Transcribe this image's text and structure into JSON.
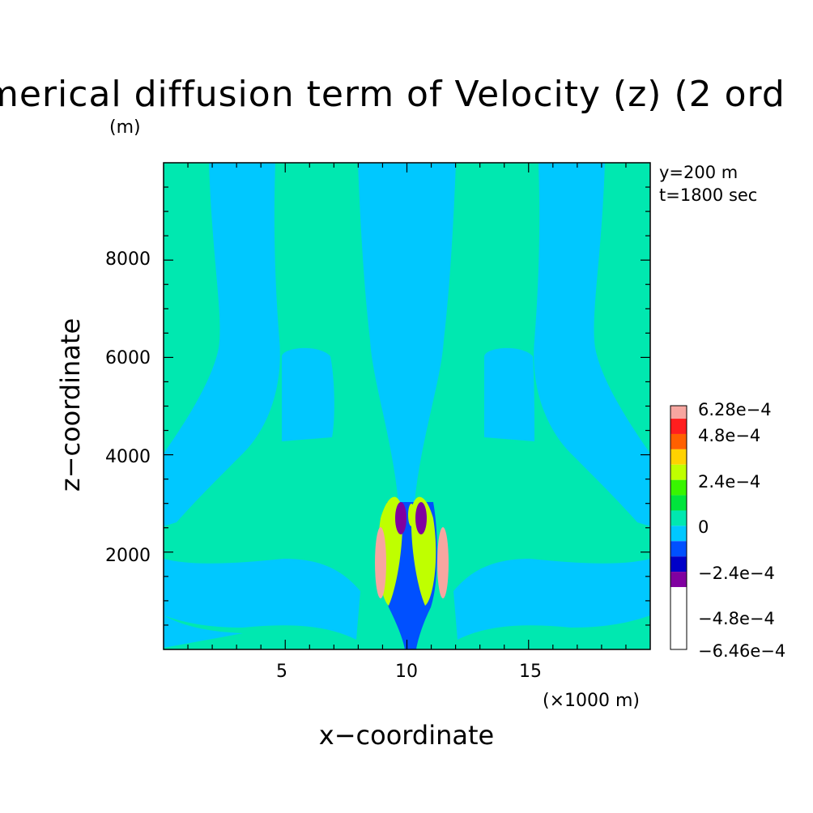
{
  "chart_data": {
    "type": "heatmap",
    "title": "merical diffusion term of Velocity (z) (2 ord",
    "ylabel": "z−coordinate",
    "yunit": "(m)",
    "xlabel": "x−coordinate",
    "xunit": "(×1000 m)",
    "xlim": [
      0,
      20
    ],
    "ylim": [
      0,
      10000
    ],
    "x_ticks": [
      "5",
      "10",
      "15"
    ],
    "x_tick_values": [
      5,
      10,
      15
    ],
    "y_ticks": [
      "2000",
      "4000",
      "6000",
      "8000"
    ],
    "y_tick_values": [
      2000,
      4000,
      6000,
      8000
    ],
    "annotations": [
      "y=200 m",
      "t=1800 sec"
    ],
    "colorbar": {
      "labels": [
        "6.28e−4",
        "4.8e−4",
        "2.4e−4",
        "0",
        "−2.4e−4",
        "−4.8e−4",
        "−6.46e−4"
      ],
      "label_values": [
        0.000628,
        0.00048,
        0.00024,
        0,
        -0.00024,
        -0.00048,
        -0.000646
      ],
      "levels": [
        0.000628,
        0.00056,
        0.00048,
        0.0004,
        0.00032,
        0.00024,
        0.00016,
        8e-05,
        0,
        -8e-05,
        -0.00016,
        -0.00024,
        -0.00032,
        -0.0004,
        -0.00048,
        -0.00056,
        -0.000646
      ],
      "colors": [
        "#f7a6a0",
        "#ff1e1e",
        "#ff6000",
        "#ffd200",
        "#bfff00",
        "#38f500",
        "#00e53c",
        "#00e8b0",
        "#00c8ff",
        "#0050ff",
        "#0000c8",
        "#8000a0"
      ]
    },
    "field_regions": [
      {
        "name": "background",
        "value": 4e-05
      },
      {
        "name": "left-plume",
        "value": -4e-05
      },
      {
        "name": "right-plume",
        "value": -4e-05
      },
      {
        "name": "center-column",
        "value": -4e-05
      },
      {
        "name": "left-lobe",
        "value": -4e-05
      },
      {
        "name": "right-lobe",
        "value": -4e-05
      },
      {
        "name": "central-core",
        "value": -0.00012
      },
      {
        "name": "left-positive-max",
        "value": 0.00056
      },
      {
        "name": "right-positive-max",
        "value": 0.00056
      },
      {
        "name": "left-upper-positive",
        "value": 0.00028
      },
      {
        "name": "right-upper-positive",
        "value": 0.00028
      },
      {
        "name": "left-negative-min",
        "value": -0.00052
      },
      {
        "name": "right-negative-min",
        "value": -0.00052
      },
      {
        "name": "center-positive-tip",
        "value": 0.00026
      }
    ]
  }
}
